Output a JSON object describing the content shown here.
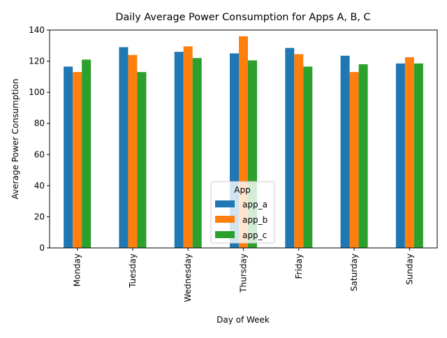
{
  "chart_data": {
    "type": "bar",
    "title": "Daily Average Power Consumption for Apps A, B, C",
    "xlabel": "Day of Week",
    "ylabel": "Average Power Consumption",
    "categories": [
      "Monday",
      "Tuesday",
      "Wednesday",
      "Thursday",
      "Friday",
      "Saturday",
      "Sunday"
    ],
    "series": [
      {
        "name": "app_a",
        "color": "#1f77b4",
        "values": [
          116.5,
          129.0,
          126.0,
          125.0,
          128.5,
          123.5,
          118.5
        ]
      },
      {
        "name": "app_b",
        "color": "#ff7f0e",
        "values": [
          113.0,
          124.0,
          129.5,
          136.0,
          124.5,
          113.0,
          122.5
        ]
      },
      {
        "name": "app_c",
        "color": "#2ca02c",
        "values": [
          121.0,
          113.0,
          122.0,
          120.5,
          116.5,
          118.0,
          118.5
        ]
      }
    ],
    "ylim": [
      0,
      140
    ],
    "yticks": [
      0,
      20,
      40,
      60,
      80,
      100,
      120,
      140
    ],
    "legend": {
      "title": "App",
      "placement": "lower-center"
    },
    "grid": false
  }
}
